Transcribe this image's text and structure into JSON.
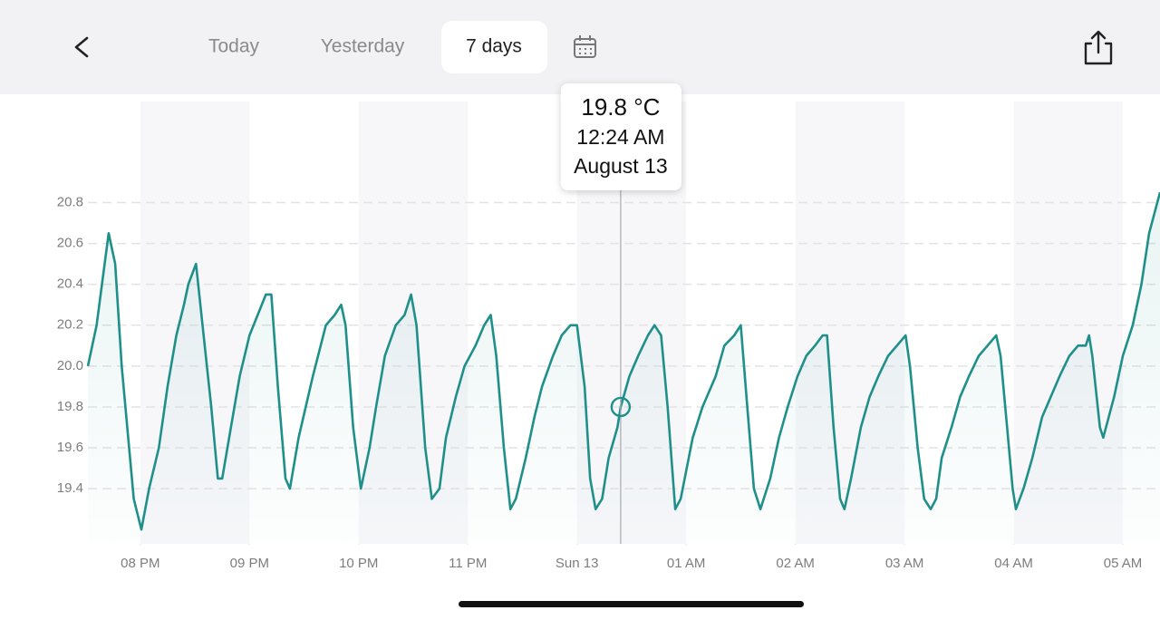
{
  "header": {
    "tabs": [
      "Today",
      "Yesterday",
      "7 days"
    ]
  },
  "chart_data": {
    "type": "line",
    "color": "#1f8f8a",
    "grid": true,
    "xlim": [
      19.52,
      29.34
    ],
    "ylim": [
      19.13,
      21.33
    ],
    "xticks": [
      {
        "value": 20,
        "label": "08 PM"
      },
      {
        "value": 21,
        "label": "09 PM"
      },
      {
        "value": 22,
        "label": "10 PM"
      },
      {
        "value": 23,
        "label": "11 PM"
      },
      {
        "value": 24,
        "label": "Sun 13"
      },
      {
        "value": 25,
        "label": "01 AM"
      },
      {
        "value": 26,
        "label": "02 AM"
      },
      {
        "value": 27,
        "label": "03 AM"
      },
      {
        "value": 28,
        "label": "04 AM"
      },
      {
        "value": 29,
        "label": "05 AM"
      }
    ],
    "yticks": [
      19.4,
      19.6,
      19.8,
      {
        "value": 20,
        "label": "20.0"
      },
      20.2,
      20.4,
      20.6,
      20.8
    ],
    "x": [
      19.52,
      19.6,
      19.71,
      19.77,
      19.83,
      19.94,
      20.01,
      20.08,
      20.17,
      20.25,
      20.33,
      20.4,
      20.44,
      20.51,
      20.57,
      20.65,
      20.71,
      20.75,
      20.83,
      20.91,
      21.0,
      21.15,
      21.2,
      21.26,
      21.33,
      21.37,
      21.45,
      21.58,
      21.7,
      21.78,
      21.84,
      21.88,
      21.95,
      22.02,
      22.1,
      22.16,
      22.24,
      22.34,
      22.42,
      22.48,
      22.53,
      22.61,
      22.67,
      22.74,
      22.8,
      22.89,
      22.97,
      23.07,
      23.15,
      23.21,
      23.26,
      23.33,
      23.39,
      23.44,
      23.53,
      23.61,
      23.68,
      23.78,
      23.86,
      23.94,
      24.0,
      24.07,
      24.12,
      24.17,
      24.23,
      24.29,
      24.37,
      24.4,
      24.48,
      24.56,
      24.65,
      24.71,
      24.77,
      24.83,
      24.9,
      24.95,
      25.06,
      25.15,
      25.27,
      25.35,
      25.44,
      25.5,
      25.56,
      25.62,
      25.68,
      25.77,
      25.85,
      25.93,
      26.02,
      26.1,
      26.18,
      26.25,
      26.29,
      26.35,
      26.41,
      26.45,
      26.51,
      26.6,
      26.68,
      26.76,
      26.85,
      26.93,
      27.01,
      27.05,
      27.12,
      27.18,
      27.24,
      27.29,
      27.34,
      27.43,
      27.51,
      27.59,
      27.68,
      27.76,
      27.84,
      27.88,
      27.94,
      27.99,
      28.02,
      28.09,
      28.17,
      28.26,
      28.34,
      28.42,
      28.51,
      28.59,
      28.66,
      28.69,
      28.72,
      28.76,
      28.79,
      28.82,
      28.87,
      28.92,
      29.0,
      29.09,
      29.17,
      29.24,
      29.29,
      29.34
    ],
    "values": [
      20.0,
      20.2,
      20.65,
      20.5,
      20.0,
      19.35,
      19.2,
      19.4,
      19.6,
      19.9,
      20.15,
      20.3,
      20.4,
      20.5,
      20.2,
      19.8,
      19.45,
      19.45,
      19.7,
      19.95,
      20.15,
      20.35,
      20.35,
      19.9,
      19.45,
      19.4,
      19.65,
      19.95,
      20.2,
      20.25,
      20.3,
      20.2,
      19.7,
      19.4,
      19.6,
      19.8,
      20.05,
      20.2,
      20.25,
      20.35,
      20.2,
      19.6,
      19.35,
      19.4,
      19.65,
      19.85,
      20.0,
      20.1,
      20.2,
      20.25,
      20.05,
      19.6,
      19.3,
      19.35,
      19.55,
      19.75,
      19.9,
      20.05,
      20.15,
      20.2,
      20.2,
      19.9,
      19.45,
      19.3,
      19.35,
      19.55,
      19.7,
      19.8,
      19.95,
      20.05,
      20.15,
      20.2,
      20.15,
      19.8,
      19.3,
      19.35,
      19.65,
      19.8,
      19.95,
      20.1,
      20.15,
      20.2,
      19.8,
      19.4,
      19.3,
      19.45,
      19.65,
      19.8,
      19.95,
      20.05,
      20.1,
      20.15,
      20.15,
      19.7,
      19.35,
      19.3,
      19.45,
      19.7,
      19.85,
      19.95,
      20.05,
      20.1,
      20.15,
      20.0,
      19.6,
      19.35,
      19.3,
      19.35,
      19.55,
      19.7,
      19.85,
      19.95,
      20.05,
      20.1,
      20.15,
      20.05,
      19.7,
      19.4,
      19.3,
      19.4,
      19.55,
      19.75,
      19.85,
      19.95,
      20.05,
      20.1,
      20.1,
      20.15,
      20.05,
      19.85,
      19.7,
      19.65,
      19.75,
      19.85,
      20.05,
      20.2,
      20.4,
      20.65,
      20.75,
      20.85
    ],
    "tooltip": {
      "x": 24.4,
      "value": 19.8,
      "label": "19.8 °C",
      "time": "12:24 AM",
      "date": "August 13"
    }
  }
}
